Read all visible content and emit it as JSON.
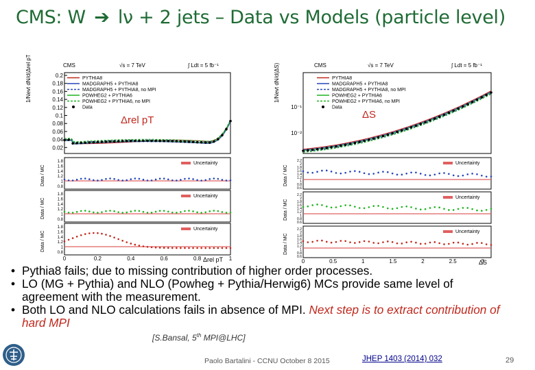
{
  "slide": {
    "title_part1": "CMS: W",
    "title_arrow": "➔",
    "title_part2": "lν + 2 jets – Data vs Models (particle level)",
    "page_number": "29",
    "footer": "Paolo Bartalini - CCNU October 8 2015",
    "reference": "JHEP 1403 (2014) 032",
    "citation_main": "[S.Bansal, 5",
    "citation_sup": "th",
    "citation_end": " MPI@LHC]"
  },
  "bullets": {
    "b1": "Pythia8 fails; due to missing contribution of higher order processes.",
    "b2": "LO (MG + Pythia) and NLO (Powheg + Pythia/Herwig6) MCs provide same level of agreement with the measurement.",
    "b3_black": "Both LO and NLO calculations fails in absence of MPI.",
    "b3_red": "Next step is to extract contribution of hard MPI"
  },
  "left_plot": {
    "cms": "CMS",
    "energy": "√s = 7 TeV",
    "lumi": "∫ Ldt = 5 fb⁻¹",
    "variable_label": "Δrel pT",
    "y_title": "1/Nevt dN/d(Δrel pT)",
    "x_axis_label": "Δrel pT",
    "legend": [
      "PYTHIA8",
      "MADGRAPH5 + PYTHIA8",
      "MADGRAPH5 + PYTHIA8, no MPI",
      "POWHEG2 + PYTHIA6",
      "POWHEG2 + PYTHIA6, no MPI",
      "Data"
    ],
    "y_ticks": [
      "0.2",
      "0.18",
      "0.16",
      "0.14",
      "0.12",
      "0.1",
      "0.08",
      "0.06",
      "0.04",
      "0.02"
    ],
    "x_ticks": [
      "0",
      "0.2",
      "0.4",
      "0.6",
      "0.8",
      "1"
    ],
    "ratio_ticks": [
      "1.8",
      "1.6",
      "1.4",
      "1.2",
      "1",
      "0.8"
    ],
    "ratio_label": "Data / MC",
    "uncertainty": "Uncertainty"
  },
  "right_plot": {
    "cms": "CMS",
    "energy": "√s = 7 TeV",
    "lumi": "∫ Ldt = 5 fb⁻¹",
    "variable_label": "ΔS",
    "y_title": "1/Nevt dN/d(ΔS)",
    "x_axis_label": "ΔS",
    "legend": [
      "PYTHIA8",
      "MADGRAPH5 + PYTHIA8",
      "MADGRAPH5 + PYTHIA8, no MPI",
      "POWHEG2 + PYTHIA6",
      "POWHEG2 + PYTHIA6, no MPI",
      "Data"
    ],
    "y_ticks": [
      "10⁻¹",
      "10⁻²"
    ],
    "x_ticks": [
      "0",
      "0.5",
      "1",
      "1.5",
      "2",
      "2.5",
      "3"
    ],
    "ratio_ticks": [
      "2.2",
      "2",
      "1.8",
      "1.6",
      "1.4",
      "1.2",
      "1",
      "0.8",
      "0.6"
    ],
    "ratio_label": "Data / MC",
    "uncertainty": "Uncertainty"
  },
  "colors": {
    "title": "#1f6b35",
    "pythia8": "#c0281d",
    "madgraph": "#2545b8",
    "powheg": "#1fb31f",
    "data": "#000000",
    "uncertainty": "#e06060"
  }
}
